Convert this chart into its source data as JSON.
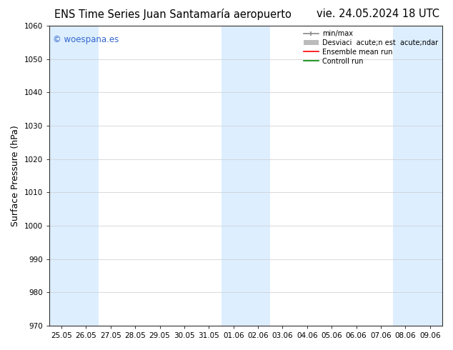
{
  "title_left": "ENS Time Series Juan Santamaría aeropuerto",
  "title_right": "vie. 24.05.2024 18 UTC",
  "ylabel": "Surface Pressure (hPa)",
  "ylim": [
    970,
    1060
  ],
  "yticks": [
    970,
    980,
    990,
    1000,
    1010,
    1020,
    1030,
    1040,
    1050,
    1060
  ],
  "x_labels": [
    "25.05",
    "26.05",
    "27.05",
    "28.05",
    "29.05",
    "30.05",
    "31.05",
    "01.06",
    "02.06",
    "03.06",
    "04.06",
    "05.06",
    "06.06",
    "07.06",
    "08.06",
    "09.06"
  ],
  "n_ticks": 16,
  "shaded_indices": [
    0,
    1,
    7,
    8,
    14,
    15
  ],
  "bg_color": "#ffffff",
  "plot_bg_color": "#ffffff",
  "shaded_color": "#ddeeff",
  "watermark_text": "© woespana.es",
  "watermark_color": "#3366cc",
  "legend_label_minmax": "min/max",
  "legend_label_desv": "Desviaci  acute;n est  acute;ndar",
  "legend_label_ensemble": "Ensemble mean run",
  "legend_label_control": "Controll run",
  "legend_color_minmax": "#888888",
  "legend_color_desv": "#bbbbbb",
  "legend_color_ensemble": "#ff0000",
  "legend_color_control": "#008800",
  "title_fontsize": 10.5,
  "tick_fontsize": 7.5,
  "ylabel_fontsize": 9
}
